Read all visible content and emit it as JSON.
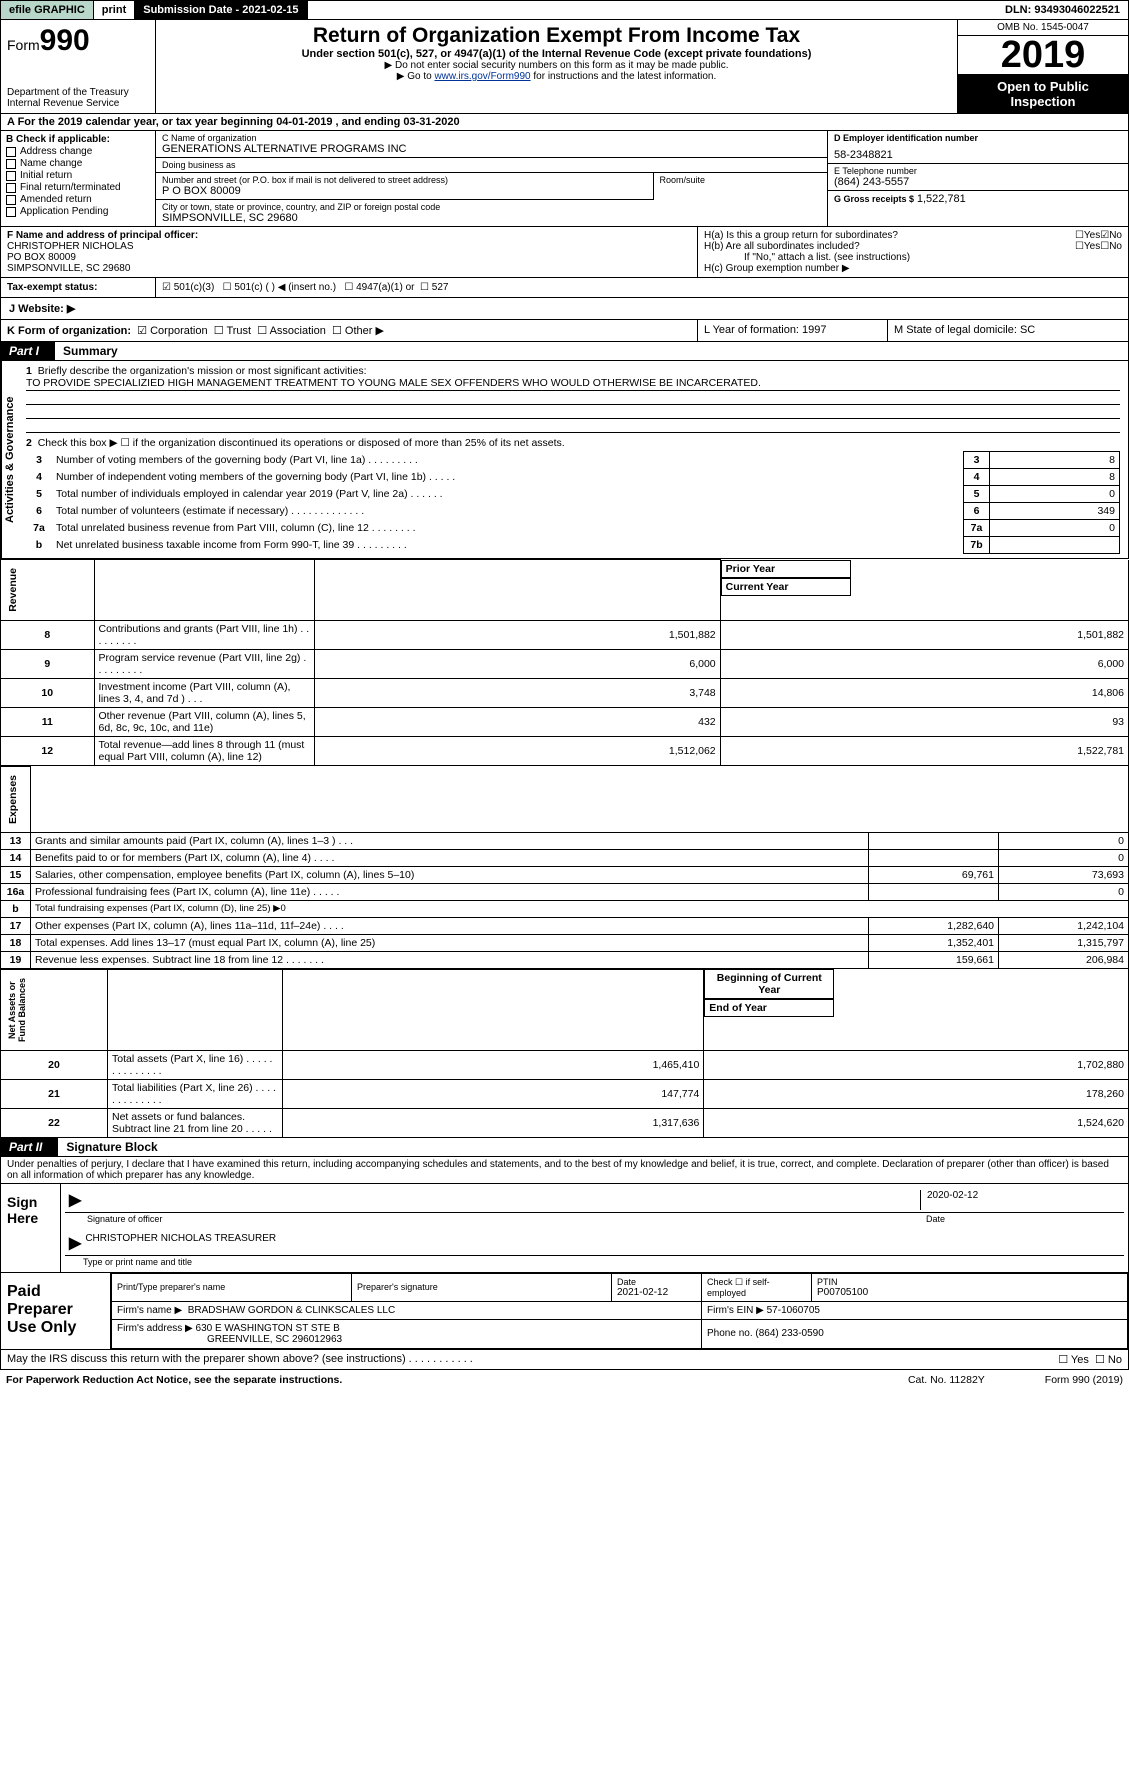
{
  "colors": {
    "border": "#000000",
    "darkbg": "#000000",
    "efilebg": "#b8d7c8",
    "link": "#003399"
  },
  "topbar": {
    "efile": "efile GRAPHIC",
    "print": "print",
    "submission": "Submission Date - 2021-02-15",
    "dln": "DLN: 93493046022521"
  },
  "header": {
    "form": "Form",
    "formno": "990",
    "dept": "Department of the Treasury\nInternal Revenue Service",
    "title": "Return of Organization Exempt From Income Tax",
    "sub": "Under section 501(c), 527, or 4947(a)(1) of the Internal Revenue Code (except private foundations)",
    "sub2a": "▶ Do not enter social security numbers on this form as it may be made public.",
    "sub2b_pre": "▶ Go to ",
    "sub2b_link": "www.irs.gov/Form990",
    "sub2b_post": " for instructions and the latest information.",
    "omb": "OMB No. 1545-0047",
    "year": "2019",
    "open": "Open to Public\nInspection"
  },
  "lineA": "A For the 2019 calendar year, or tax year beginning 04-01-2019    , and ending 03-31-2020",
  "boxB": {
    "label": "B Check if applicable:",
    "items": [
      "Address change",
      "Name change",
      "Initial return",
      "Final return/terminated",
      "Amended return",
      "Application Pending"
    ]
  },
  "boxC": {
    "name_lbl": "C Name of organization",
    "name": "GENERATIONS ALTERNATIVE PROGRAMS INC",
    "dba_lbl": "Doing business as",
    "dba": "",
    "addr_lbl": "Number and street (or P.O. box if mail is not delivered to street address)",
    "room_lbl": "Room/suite",
    "addr": "P O BOX 80009",
    "city_lbl": "City or town, state or province, country, and ZIP or foreign postal code",
    "city": "SIMPSONVILLE, SC  29680"
  },
  "boxD": {
    "lbl": "D Employer identification number",
    "val": "58-2348821"
  },
  "boxE": {
    "lbl": "E Telephone number",
    "val": "(864) 243-5557"
  },
  "boxG": {
    "lbl": "G Gross receipts $",
    "val": "1,522,781"
  },
  "boxF": {
    "lbl": "F Name and address of principal officer:",
    "name": "CHRISTOPHER NICHOLAS",
    "addr1": "PO BOX 80009",
    "addr2": "SIMPSONVILLE, SC  29680"
  },
  "boxH": {
    "a": "H(a)  Is this a group return for subordinates?",
    "b": "H(b)  Are all subordinates included?",
    "bnote": "If \"No,\" attach a list. (see instructions)",
    "c": "H(c)  Group exemption number ▶",
    "yes": "Yes",
    "no": "No"
  },
  "taxexempt": {
    "lbl": "Tax-exempt status:",
    "o1": "501(c)(3)",
    "o2": "501(c) (   ) ◀ (insert no.)",
    "o3": "4947(a)(1) or",
    "o4": "527"
  },
  "websiteJ": "J   Website: ▶",
  "rowK": {
    "lbl": "K Form of organization:",
    "corp": "Corporation",
    "trust": "Trust",
    "assoc": "Association",
    "other": "Other ▶"
  },
  "rowL": "L Year of formation: 1997",
  "rowM": "M State of legal domicile: SC",
  "partI": {
    "tag": "Part I",
    "title": "Summary"
  },
  "summary": {
    "side_ag": "Activities & Governance",
    "side_rev": "Revenue",
    "side_exp": "Expenses",
    "side_na": "Net Assets or\nFund Balances",
    "q1": "Briefly describe the organization's mission or most significant activities:",
    "q1v": "TO PROVIDE SPECIALIZIED HIGH MANAGEMENT TREATMENT TO YOUNG MALE SEX OFFENDERS WHO WOULD OTHERWISE BE INCARCERATED.",
    "q2": "Check this box ▶ ☐  if the organization discontinued its operations or disposed of more than 25% of its net assets.",
    "rows": [
      {
        "n": "3",
        "t": "Number of voting members of the governing body (Part VI, line 1a)   .    .    .    .    .    .    .    .    .",
        "k": "3",
        "v": "8"
      },
      {
        "n": "4",
        "t": "Number of independent voting members of the governing body (Part VI, line 1b)   .    .    .    .    .",
        "k": "4",
        "v": "8"
      },
      {
        "n": "5",
        "t": "Total number of individuals employed in calendar year 2019 (Part V, line 2a)   .    .    .    .    .    .",
        "k": "5",
        "v": "0"
      },
      {
        "n": "6",
        "t": "Total number of volunteers (estimate if necessary)   .    .    .    .    .    .    .    .    .    .    .    .    .",
        "k": "6",
        "v": "349"
      },
      {
        "n": "7a",
        "t": "Total unrelated business revenue from Part VIII, column (C), line 12   .    .    .    .    .    .    .    .",
        "k": "7a",
        "v": "0"
      },
      {
        "n": "b",
        "t": "Net unrelated business taxable income from Form 990-T, line 39   .    .    .    .    .    .    .    .    .",
        "k": "7b",
        "v": ""
      }
    ],
    "hdr_prior": "Prior Year",
    "hdr_curr": "Current Year",
    "rev": [
      {
        "n": "8",
        "t": "Contributions and grants (Part VIII, line 1h)   .    .    .    .    .    .    .    .    .",
        "p": "1,501,882",
        "c": "1,501,882"
      },
      {
        "n": "9",
        "t": "Program service revenue (Part VIII, line 2g)   .    .    .    .    .    .    .    .    .",
        "p": "6,000",
        "c": "6,000"
      },
      {
        "n": "10",
        "t": "Investment income (Part VIII, column (A), lines 3, 4, and 7d )   .    .    .",
        "p": "3,748",
        "c": "14,806"
      },
      {
        "n": "11",
        "t": "Other revenue (Part VIII, column (A), lines 5, 6d, 8c, 9c, 10c, and 11e)",
        "p": "432",
        "c": "93"
      },
      {
        "n": "12",
        "t": "Total revenue—add lines 8 through 11 (must equal Part VIII, column (A), line 12)",
        "p": "1,512,062",
        "c": "1,522,781"
      }
    ],
    "exp": [
      {
        "n": "13",
        "t": "Grants and similar amounts paid (Part IX, column (A), lines 1–3 )   .    .    .",
        "p": "",
        "c": "0"
      },
      {
        "n": "14",
        "t": "Benefits paid to or for members (Part IX, column (A), line 4)   .    .    .    .",
        "p": "",
        "c": "0"
      },
      {
        "n": "15",
        "t": "Salaries, other compensation, employee benefits (Part IX, column (A), lines 5–10)",
        "p": "69,761",
        "c": "73,693"
      },
      {
        "n": "16a",
        "t": "Professional fundraising fees (Part IX, column (A), line 11e)   .    .    .    .    .",
        "p": "",
        "c": "0"
      },
      {
        "n": "b",
        "t": "Total fundraising expenses (Part IX, column (D), line 25) ▶0",
        "p": null,
        "c": null
      },
      {
        "n": "17",
        "t": "Other expenses (Part IX, column (A), lines 11a–11d, 11f–24e)   .    .    .    .",
        "p": "1,282,640",
        "c": "1,242,104"
      },
      {
        "n": "18",
        "t": "Total expenses. Add lines 13–17 (must equal Part IX, column (A), line 25)",
        "p": "1,352,401",
        "c": "1,315,797"
      },
      {
        "n": "19",
        "t": "Revenue less expenses. Subtract line 18 from line 12   .    .    .    .    .    .    .",
        "p": "159,661",
        "c": "206,984"
      }
    ],
    "hdr_beg": "Beginning of Current Year",
    "hdr_end": "End of Year",
    "na": [
      {
        "n": "20",
        "t": "Total assets (Part X, line 16)   .    .    .    .    .    .    .    .    .    .    .    .    .    .",
        "p": "1,465,410",
        "c": "1,702,880"
      },
      {
        "n": "21",
        "t": "Total liabilities (Part X, line 26)   .    .    .    .    .    .    .    .    .    .    .    .    .",
        "p": "147,774",
        "c": "178,260"
      },
      {
        "n": "22",
        "t": "Net assets or fund balances. Subtract line 21 from line 20   .    .    .    .    .",
        "p": "1,317,636",
        "c": "1,524,620"
      }
    ]
  },
  "partII": {
    "tag": "Part II",
    "title": "Signature Block"
  },
  "jurat": "Under penalties of perjury, I declare that I have examined this return, including accompanying schedules and statements, and to the best of my knowledge and belief, it is true, correct, and complete. Declaration of preparer (other than officer) is based on all information of which preparer has any knowledge.",
  "sign": {
    "here": "Sign\nHere",
    "sig_lbl": "Signature of officer",
    "date": "2020-02-12",
    "date_lbl": "Date",
    "name": "CHRISTOPHER NICHOLAS  TREASURER",
    "name_lbl": "Type or print name and title"
  },
  "paid": {
    "lbl": "Paid\nPreparer\nUse Only",
    "h1": "Print/Type preparer's name",
    "h2": "Preparer's signature",
    "h3": "Date",
    "h3v": "2021-02-12",
    "h4": "Check ☐ if self-employed",
    "h5": "PTIN",
    "h5v": "P00705100",
    "firm_lbl": "Firm's name     ▶",
    "firm": "BRADSHAW GORDON & CLINKSCALES LLC",
    "ein_lbl": "Firm's EIN ▶",
    "ein": "57-1060705",
    "addr_lbl": "Firm's address ▶",
    "addr1": "630 E WASHINGTON ST STE B",
    "addr2": "GREENVILLE, SC  296012963",
    "phone_lbl": "Phone no.",
    "phone": "(864) 233-0590"
  },
  "discuss": "May the IRS discuss this return with the preparer shown above? (see instructions)   .    .    .    .    .    .    .    .    .    .    .",
  "foot": {
    "l": "For Paperwork Reduction Act Notice, see the separate instructions.",
    "c": "Cat. No. 11282Y",
    "r": "Form 990 (2019)"
  }
}
